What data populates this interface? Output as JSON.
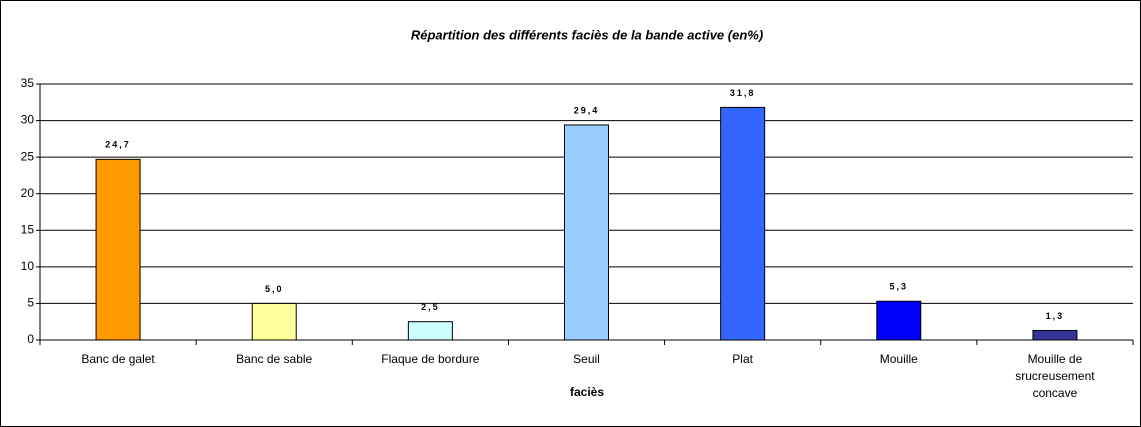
{
  "chart_data": {
    "type": "bar",
    "title": "Répartition des différents faciès de la bande active (en%)",
    "x_label": "faciès",
    "categories": [
      "Banc de galet",
      "Banc de sable",
      "Flaque de bordure",
      "Seuil",
      "Plat",
      "Mouille",
      "Mouille de srucreusement concave"
    ],
    "values": [
      24.7,
      5.0,
      2.5,
      29.4,
      31.8,
      5.3,
      1.3
    ],
    "value_labels": [
      "24,7",
      "5,0",
      "2,5",
      "29,4",
      "31,8",
      "5,3",
      "1,3"
    ],
    "colors": [
      "#ff9900",
      "#ffff99",
      "#ccffff",
      "#99ccff",
      "#3366ff",
      "#0000ff",
      "#333399"
    ],
    "ylim": [
      0,
      35
    ],
    "yticks": [
      0,
      5,
      10,
      15,
      20,
      25,
      30,
      35
    ],
    "grid": true
  }
}
